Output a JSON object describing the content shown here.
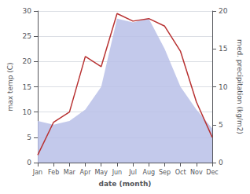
{
  "chart_data": {
    "type": "line",
    "categories": [
      "Jan",
      "Feb",
      "Mar",
      "Apr",
      "May",
      "Jun",
      "Jul",
      "Aug",
      "Sep",
      "Oct",
      "Nov",
      "Dec"
    ],
    "series": [
      {
        "type": "area",
        "color": "#b8c0e8",
        "axis": "y2",
        "values": [
          5.5,
          5.0,
          5.5,
          7.0,
          10.0,
          19.0,
          18.5,
          19.0,
          15.0,
          10.0,
          7.0,
          4.5
        ]
      },
      {
        "type": "line",
        "color": "#b83232",
        "values": [
          1.5,
          8.0,
          10.0,
          21.0,
          19.0,
          29.5,
          28.0,
          28.5,
          27.0,
          22.0,
          12.0,
          5.0
        ]
      }
    ],
    "xlabel": "date (month)",
    "ylabel": "max temp (C)",
    "y2label": "med. precipitation (kg/m2)",
    "ylim": [
      0,
      30
    ],
    "yticks": [
      0,
      5,
      10,
      15,
      20,
      25,
      30
    ],
    "y2lim": [
      0,
      20
    ],
    "y2ticks": [
      0,
      5,
      10,
      15,
      20
    ],
    "grid": true
  }
}
